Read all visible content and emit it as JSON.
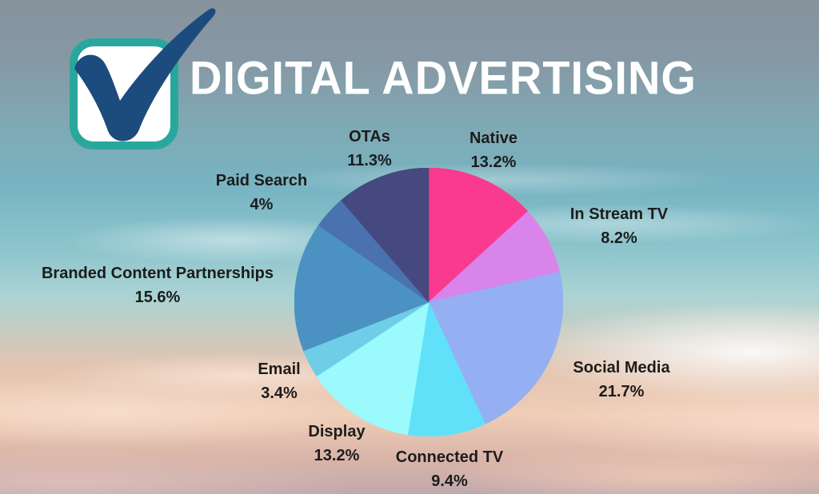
{
  "header": {
    "title": "DIGITAL ADVERTISING"
  },
  "logo": {
    "icon": "checkmark-logo",
    "border_color": "#2AA79C",
    "check_color": "#1C4B7D",
    "fill_color": "#FFFFFF"
  },
  "background": {
    "sky_top": "#87939D",
    "sky_teal": "#77B4C2",
    "clouds_peach": "#EFCDB6"
  },
  "chart_data": {
    "type": "pie",
    "title": "Digital Advertising",
    "legend_position": "around-labels",
    "start_angle_deg": 0,
    "direction": "clockwise",
    "slices": [
      {
        "label": "Native",
        "value": 13.2,
        "pct_label": "13.2%",
        "color": "#F93A8E"
      },
      {
        "label": "In Stream TV",
        "value": 8.2,
        "pct_label": "8.2%",
        "color": "#D884EA"
      },
      {
        "label": "Social Media",
        "value": 21.7,
        "pct_label": "21.7%",
        "color": "#94B0F2"
      },
      {
        "label": "Connected TV",
        "value": 9.4,
        "pct_label": "9.4%",
        "color": "#60E1F9"
      },
      {
        "label": "Display",
        "value": 13.2,
        "pct_label": "13.2%",
        "color": "#9BFAFB"
      },
      {
        "label": "Email",
        "value": 3.4,
        "pct_label": "3.4%",
        "color": "#6FCDE8"
      },
      {
        "label": "Branded Content Partnerships",
        "value": 15.6,
        "pct_label": "15.6%",
        "color": "#4B92C3"
      },
      {
        "label": "Paid Search",
        "value": 4,
        "pct_label": "4%",
        "color": "#4A72AE"
      },
      {
        "label": "OTAs",
        "value": 11.3,
        "pct_label": "11.3%",
        "color": "#45497F"
      }
    ]
  }
}
